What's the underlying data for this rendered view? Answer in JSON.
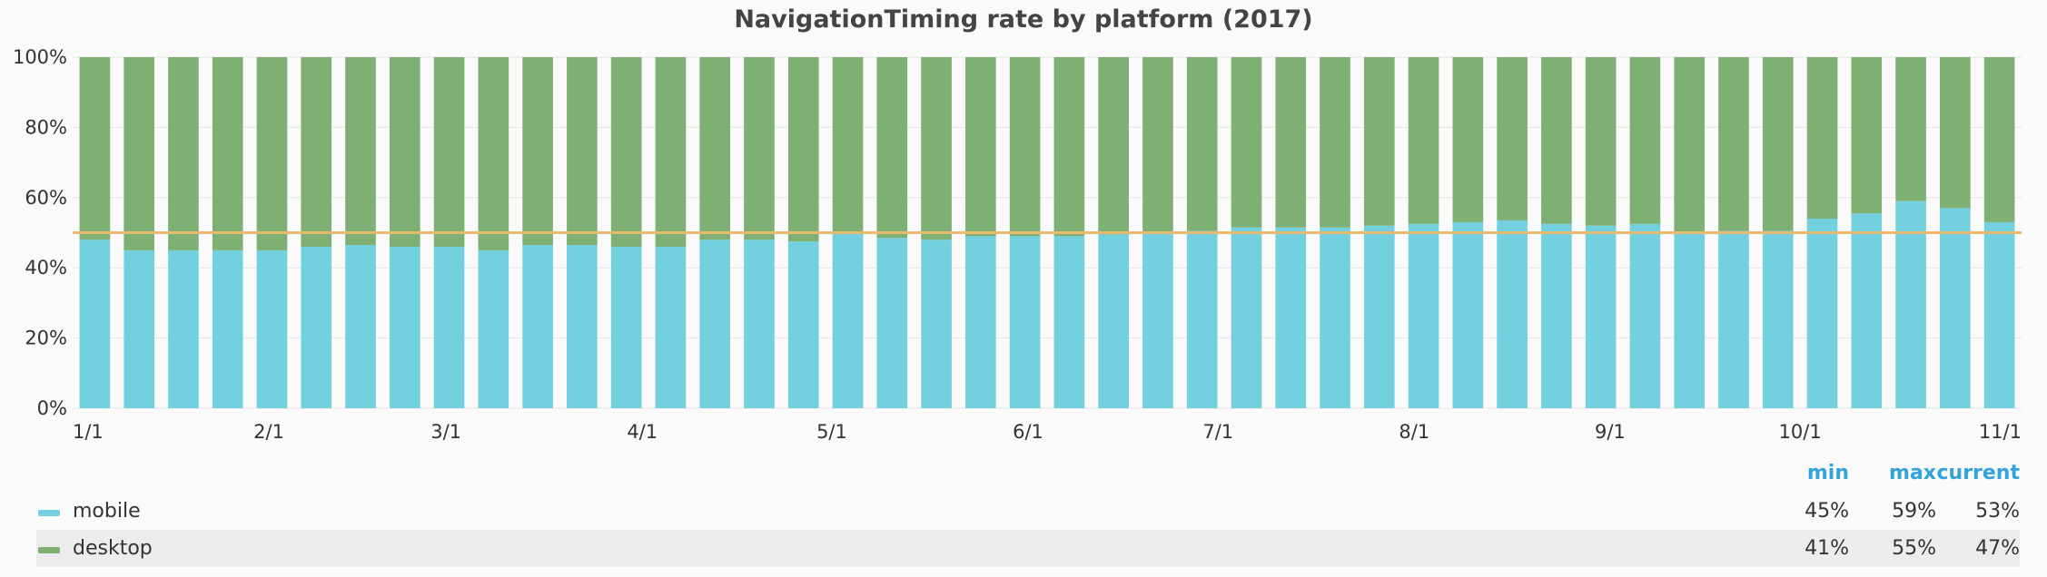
{
  "chart_data": {
    "type": "bar",
    "stacked": true,
    "title": "NavigationTiming rate by platform (2017)",
    "ylim": [
      0,
      100
    ],
    "y_ticks": [
      "0%",
      "20%",
      "40%",
      "60%",
      "80%",
      "100%"
    ],
    "x_tick_labels": [
      "1/1",
      "2/1",
      "3/1",
      "4/1",
      "5/1",
      "6/1",
      "7/1",
      "8/1",
      "9/1",
      "10/1",
      "11/1"
    ],
    "x_tick_weeks": [
      0,
      4.43,
      8.43,
      12.86,
      17.14,
      21.57,
      25.86,
      30.29,
      34.71,
      39,
      43.43
    ],
    "threshold": 50,
    "series": [
      {
        "name": "mobile",
        "color": "#73d0df",
        "values": [
          48,
          45,
          45,
          45,
          45,
          46,
          46.5,
          46,
          46,
          45,
          46.5,
          46.5,
          46,
          46,
          48,
          48,
          47.5,
          50,
          48.5,
          48,
          49,
          49,
          49,
          49.5,
          50,
          50.5,
          51.5,
          51.5,
          51.5,
          52,
          52.5,
          53,
          53.5,
          52.5,
          52,
          52.5,
          50,
          50.5,
          50.5,
          54,
          55.5,
          59,
          57,
          53
        ]
      },
      {
        "name": "desktop",
        "color": "#7fb073",
        "values": [
          52,
          55,
          55,
          55,
          55,
          54,
          53.5,
          54,
          54,
          55,
          53.5,
          53.5,
          54,
          54,
          52,
          52,
          52.5,
          50,
          51.5,
          52,
          51,
          51,
          51,
          50.5,
          50,
          49.5,
          48.5,
          48.5,
          48.5,
          48,
          47.5,
          47,
          46.5,
          47.5,
          48,
          47.5,
          50,
          49.5,
          49.5,
          46,
          44.5,
          41,
          43,
          47
        ]
      }
    ]
  },
  "legend": {
    "headers": {
      "min": "min",
      "max": "max",
      "current": "current"
    },
    "rows": [
      {
        "name": "mobile",
        "color": "#73d0df",
        "min": "45%",
        "max": "59%",
        "current": "53%"
      },
      {
        "name": "desktop",
        "color": "#7fb073",
        "min": "41%",
        "max": "55%",
        "current": "47%"
      }
    ]
  },
  "colors": {
    "threshold": "#e8b96e",
    "grid": "#e6e6e6",
    "accent": "#33a3dc"
  }
}
